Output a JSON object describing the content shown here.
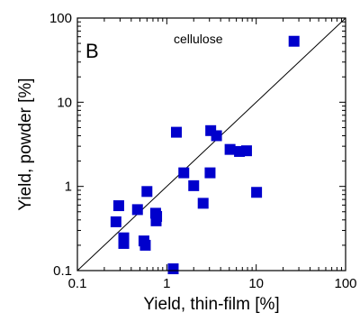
{
  "chart_data": {
    "type": "scatter",
    "panel_label": "B",
    "annotation": "cellulose",
    "xlabel": "Yield, thin-film [%]",
    "ylabel": "Yield, powder  [%]",
    "x_scale": "log",
    "y_scale": "log",
    "xlim": [
      0.1,
      100
    ],
    "ylim": [
      0.1,
      100
    ],
    "x_ticks": [
      0.1,
      1,
      10,
      100
    ],
    "y_ticks": [
      0.1,
      1,
      10,
      100
    ],
    "x_tick_labels": [
      "0.1",
      "1",
      "10",
      "100"
    ],
    "y_tick_labels": [
      "0.1",
      "1",
      "10",
      "100"
    ],
    "grid": false,
    "reference_line": "y = x",
    "marker": "square",
    "marker_color": "#0000cc",
    "points": [
      {
        "x": 26.5,
        "y": 53
      },
      {
        "x": 1.28,
        "y": 4.4
      },
      {
        "x": 3.1,
        "y": 4.6
      },
      {
        "x": 3.6,
        "y": 4.0
      },
      {
        "x": 5.1,
        "y": 2.75
      },
      {
        "x": 6.5,
        "y": 2.6
      },
      {
        "x": 7.8,
        "y": 2.65
      },
      {
        "x": 1.55,
        "y": 1.45
      },
      {
        "x": 3.05,
        "y": 1.45
      },
      {
        "x": 2.0,
        "y": 1.02
      },
      {
        "x": 10.1,
        "y": 0.85
      },
      {
        "x": 2.55,
        "y": 0.63
      },
      {
        "x": 0.6,
        "y": 0.87
      },
      {
        "x": 0.29,
        "y": 0.59
      },
      {
        "x": 0.47,
        "y": 0.53
      },
      {
        "x": 0.75,
        "y": 0.48
      },
      {
        "x": 0.77,
        "y": 0.44
      },
      {
        "x": 0.27,
        "y": 0.38
      },
      {
        "x": 0.76,
        "y": 0.39
      },
      {
        "x": 0.33,
        "y": 0.245
      },
      {
        "x": 0.33,
        "y": 0.21
      },
      {
        "x": 0.555,
        "y": 0.225
      },
      {
        "x": 0.575,
        "y": 0.2
      },
      {
        "x": 1.18,
        "y": 0.105
      }
    ]
  }
}
